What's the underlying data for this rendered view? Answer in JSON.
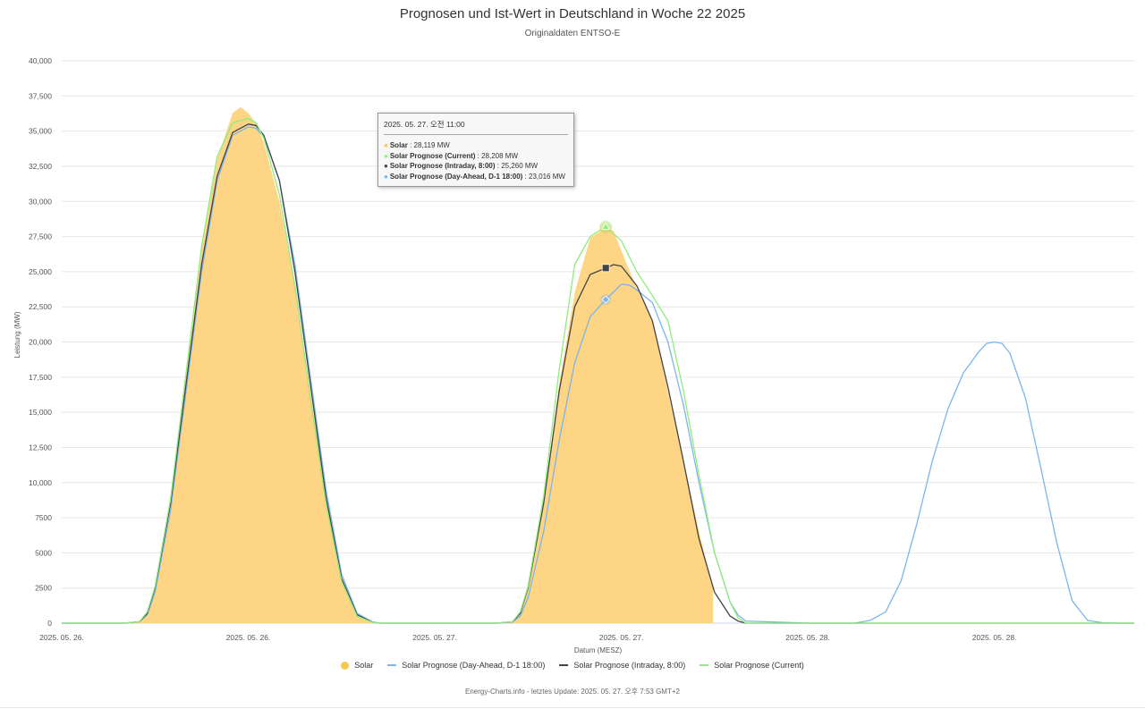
{
  "title": "Prognosen und Ist-Wert in Deutschland in Woche 22 2025",
  "subtitle": "Originaldaten ENTSO-E",
  "credits": "Energy-Charts.info - letztes Update: 2025. 05. 27. 오후 7:53 GMT+2",
  "colors": {
    "solar": "#fdd584",
    "solar_legend": "#f9c74f",
    "day_ahead": "#7cb5ec",
    "intraday": "#434348",
    "current": "#90ed7d",
    "grid": "#e6e6e6"
  },
  "tooltip": {
    "header": "2025. 05. 27. 오전 11:00",
    "rows": [
      {
        "name": "Solar",
        "value": "28,119 MW",
        "color": "#f9c74f"
      },
      {
        "name": "Solar Prognose (Current)",
        "value": "28,208 MW",
        "color": "#90ed7d"
      },
      {
        "name": "Solar Prognose (Intraday, 8:00)",
        "value": "25,260 MW",
        "color": "#434348"
      },
      {
        "name": "Solar Prognose (Day-Ahead, D-1 18:00)",
        "value": "23,016 MW",
        "color": "#7cb5ec"
      }
    ]
  },
  "legend": [
    {
      "name": "Solar",
      "kind": "dot",
      "color": "#f9c74f"
    },
    {
      "name": "Solar Prognose (Day-Ahead, D-1 18:00)",
      "kind": "line",
      "color": "#7cb5ec"
    },
    {
      "name": "Solar Prognose (Intraday, 8:00)",
      "kind": "line",
      "color": "#434348"
    },
    {
      "name": "Solar Prognose (Current)",
      "kind": "line",
      "color": "#90ed7d"
    }
  ],
  "chart_data": {
    "type": "area",
    "title": "Prognosen und Ist-Wert in Deutschland in Woche 22 2025",
    "subtitle": "Originaldaten ENTSO-E",
    "xlabel": "Datum (MESZ)",
    "ylabel": "Leistung (MW)",
    "x_unit": "hours since 2025-05-26 00:00",
    "xlim": [
      0,
      69
    ],
    "ylim": [
      0,
      40000
    ],
    "y_ticks": [
      0,
      2500,
      5000,
      7500,
      10000,
      12500,
      15000,
      17500,
      20000,
      22500,
      25000,
      27500,
      30000,
      32500,
      35000,
      37500,
      40000
    ],
    "y_tick_labels": [
      "0",
      "2500",
      "5000",
      "7500",
      "10,000",
      "12,500",
      "15,000",
      "17,500",
      "20,000",
      "22,500",
      "25,000",
      "27,500",
      "30,000",
      "32,500",
      "35,000",
      "37,500",
      "40,000"
    ],
    "x_ticks": [
      0,
      12,
      24,
      36,
      48,
      60
    ],
    "x_tick_labels": [
      "2025. 05. 26.",
      "2025. 05. 26.",
      "2025. 05. 27.",
      "2025. 05. 27.",
      "2025. 05. 28.",
      "2025. 05. 28."
    ],
    "grid": true,
    "legend_position": "bottom-center",
    "series": [
      {
        "name": "Solar",
        "type": "area",
        "color": "#fdd584",
        "x": [
          0,
          4,
          5,
          5.5,
          6,
          7,
          8,
          9,
          10,
          11,
          11.5,
          12,
          12.5,
          13,
          14,
          15,
          16,
          17,
          18,
          19,
          20,
          20.5,
          21,
          24,
          28,
          29,
          29.5,
          30,
          31,
          32,
          33,
          34,
          35,
          35.5,
          36,
          37,
          38,
          39,
          40,
          41,
          41.9,
          41.9
        ],
        "y": [
          0,
          0,
          100,
          700,
          2500,
          8500,
          17500,
          26500,
          33000,
          36300,
          36700,
          36300,
          35500,
          34200,
          30000,
          24000,
          16500,
          9000,
          3200,
          600,
          50,
          0,
          0,
          0,
          0,
          100,
          700,
          2500,
          8500,
          17000,
          23500,
          27400,
          28119,
          27900,
          26500,
          23800,
          21500,
          16500,
          11500,
          6500,
          2500,
          0
        ]
      },
      {
        "name": "Solar Prognose (Day-Ahead, D-1 18:00)",
        "type": "line",
        "color": "#7cb5ec",
        "x": [
          0,
          4,
          5,
          5.5,
          6,
          7,
          8,
          9,
          10,
          11,
          12,
          12.5,
          13,
          14,
          15,
          16,
          17,
          18,
          19,
          20,
          20.5,
          21,
          24,
          28,
          29,
          29.5,
          30,
          31,
          32,
          33,
          34,
          35,
          36,
          36.5,
          37,
          38,
          39,
          40,
          41,
          42,
          43,
          43.5,
          44,
          48,
          51,
          52,
          53,
          54,
          55,
          56,
          57,
          58,
          59,
          59.5,
          60,
          60.5,
          61,
          62,
          63,
          64,
          65,
          66,
          67,
          68,
          69
        ],
        "y": [
          0,
          0,
          100,
          600,
          2200,
          8000,
          16500,
          25000,
          31500,
          34700,
          35300,
          35200,
          34600,
          31500,
          25500,
          17500,
          9500,
          3500,
          700,
          80,
          0,
          0,
          0,
          0,
          80,
          500,
          1800,
          6500,
          13000,
          18500,
          21800,
          23016,
          24100,
          24050,
          23700,
          22800,
          20000,
          15500,
          10000,
          5000,
          1500,
          600,
          150,
          0,
          0,
          200,
          800,
          3000,
          7000,
          11500,
          15200,
          17800,
          19300,
          19900,
          20000,
          19900,
          19200,
          16000,
          11000,
          5800,
          1600,
          200,
          20,
          0,
          0
        ]
      },
      {
        "name": "Solar Prognose (Intraday, 8:00)",
        "type": "line",
        "color": "#434348",
        "x": [
          0,
          4,
          5,
          5.5,
          6,
          7,
          8,
          9,
          10,
          11,
          12,
          12.5,
          13,
          14,
          15,
          16,
          17,
          18,
          19,
          20,
          20.5,
          21,
          24,
          28,
          29,
          29.5,
          30,
          31,
          32,
          33,
          34,
          35,
          35.5,
          36,
          37,
          38,
          39,
          40,
          41,
          42,
          43,
          43.5,
          44,
          48,
          69
        ],
        "y": [
          0,
          0,
          100,
          700,
          2500,
          8500,
          17000,
          25500,
          31800,
          34900,
          35500,
          35400,
          34700,
          31500,
          25000,
          17000,
          9000,
          3200,
          600,
          60,
          0,
          0,
          0,
          0,
          100,
          700,
          2500,
          8500,
          16500,
          22500,
          24800,
          25260,
          25500,
          25400,
          24000,
          21500,
          16800,
          11500,
          6000,
          2200,
          500,
          150,
          0,
          0,
          0
        ]
      },
      {
        "name": "Solar Prognose (Current)",
        "type": "line",
        "color": "#90ed7d",
        "x": [
          0,
          4,
          5,
          5.5,
          6,
          7,
          8,
          9,
          10,
          11,
          12,
          12.5,
          13,
          14,
          15,
          16,
          17,
          18,
          19,
          20,
          20.5,
          21,
          24,
          28,
          29,
          29.5,
          30,
          31,
          32,
          33,
          34,
          35,
          35.5,
          36,
          37,
          38,
          39,
          40,
          41,
          42,
          43,
          43.5,
          44,
          48,
          69
        ],
        "y": [
          0,
          0,
          100,
          800,
          2600,
          8800,
          17800,
          26800,
          33200,
          35600,
          35900,
          35600,
          34500,
          30500,
          24000,
          16000,
          8500,
          3000,
          500,
          50,
          0,
          0,
          0,
          0,
          100,
          800,
          2600,
          9000,
          18000,
          25500,
          27500,
          28208,
          27700,
          27200,
          25000,
          23300,
          21500,
          16500,
          10500,
          5000,
          1500,
          400,
          0,
          0,
          0
        ]
      }
    ],
    "highlight": {
      "x": 35,
      "markers": [
        {
          "series": "Solar",
          "y": 28119,
          "color": "#f9c74f"
        },
        {
          "series": "Solar Prognose (Current)",
          "y": 28208,
          "color": "#90ed7d"
        },
        {
          "series": "Solar Prognose (Intraday, 8:00)",
          "y": 25260,
          "color": "#434348"
        },
        {
          "series": "Solar Prognose (Day-Ahead, D-1 18:00)",
          "y": 23016,
          "color": "#7cb5ec"
        }
      ]
    }
  }
}
